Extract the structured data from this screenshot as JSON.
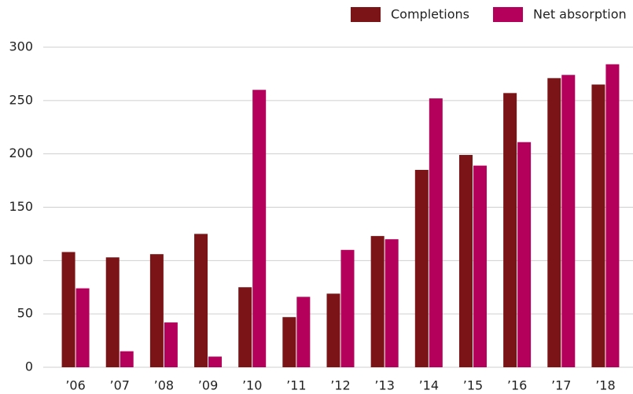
{
  "chart_data": {
    "type": "bar",
    "categories": [
      "’06",
      "’07",
      "’08",
      "’09",
      "’10",
      "’11",
      "’12",
      "’13",
      "’14",
      "’15",
      "’16",
      "’17",
      "’18"
    ],
    "series": [
      {
        "name": "Completions",
        "color": "#7a1416",
        "values": [
          108,
          103,
          106,
          125,
          75,
          47,
          69,
          123,
          185,
          199,
          257,
          271,
          265
        ]
      },
      {
        "name": "Net absorption",
        "color": "#b5005b",
        "values": [
          74,
          15,
          42,
          10,
          260,
          66,
          110,
          120,
          252,
          189,
          211,
          274,
          284
        ]
      }
    ],
    "ylim": [
      0,
      300
    ],
    "yticks": [
      0,
      50,
      100,
      150,
      200,
      250,
      300
    ],
    "grid": true,
    "legend": "top-right"
  }
}
